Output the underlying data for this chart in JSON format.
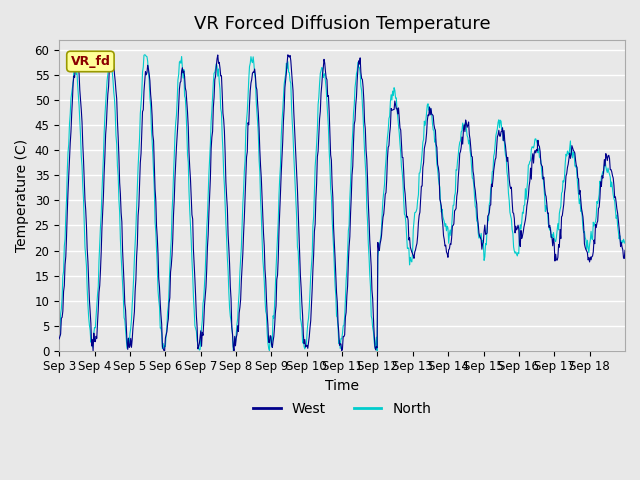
{
  "title": "VR Forced Diffusion Temperature",
  "xlabel": "Time",
  "ylabel": "Temperature (C)",
  "annotation_text": "VR_fd",
  "ylim": [
    0,
    62
  ],
  "yticks": [
    0,
    5,
    10,
    15,
    20,
    25,
    30,
    35,
    40,
    45,
    50,
    55,
    60
  ],
  "xtick_labels": [
    "Sep 3",
    "Sep 4",
    "Sep 5",
    "Sep 6",
    "Sep 7",
    "Sep 8",
    "Sep 9",
    "Sep 10",
    "Sep 11",
    "Sep 12",
    "Sep 13",
    "Sep 14",
    "Sep 15",
    "Sep 16",
    "Sep 17",
    "Sep 18"
  ],
  "west_color": "#00008B",
  "north_color": "#00CCCC",
  "fig_bg_color": "#E8E8E8",
  "plot_bg_color": "#E8E8E8",
  "legend_west_label": "West",
  "legend_north_label": "North",
  "title_fontsize": 13,
  "axis_label_fontsize": 10,
  "tick_fontsize": 8.5,
  "legend_fontsize": 10,
  "n_days": 16,
  "n_per_day": 48
}
